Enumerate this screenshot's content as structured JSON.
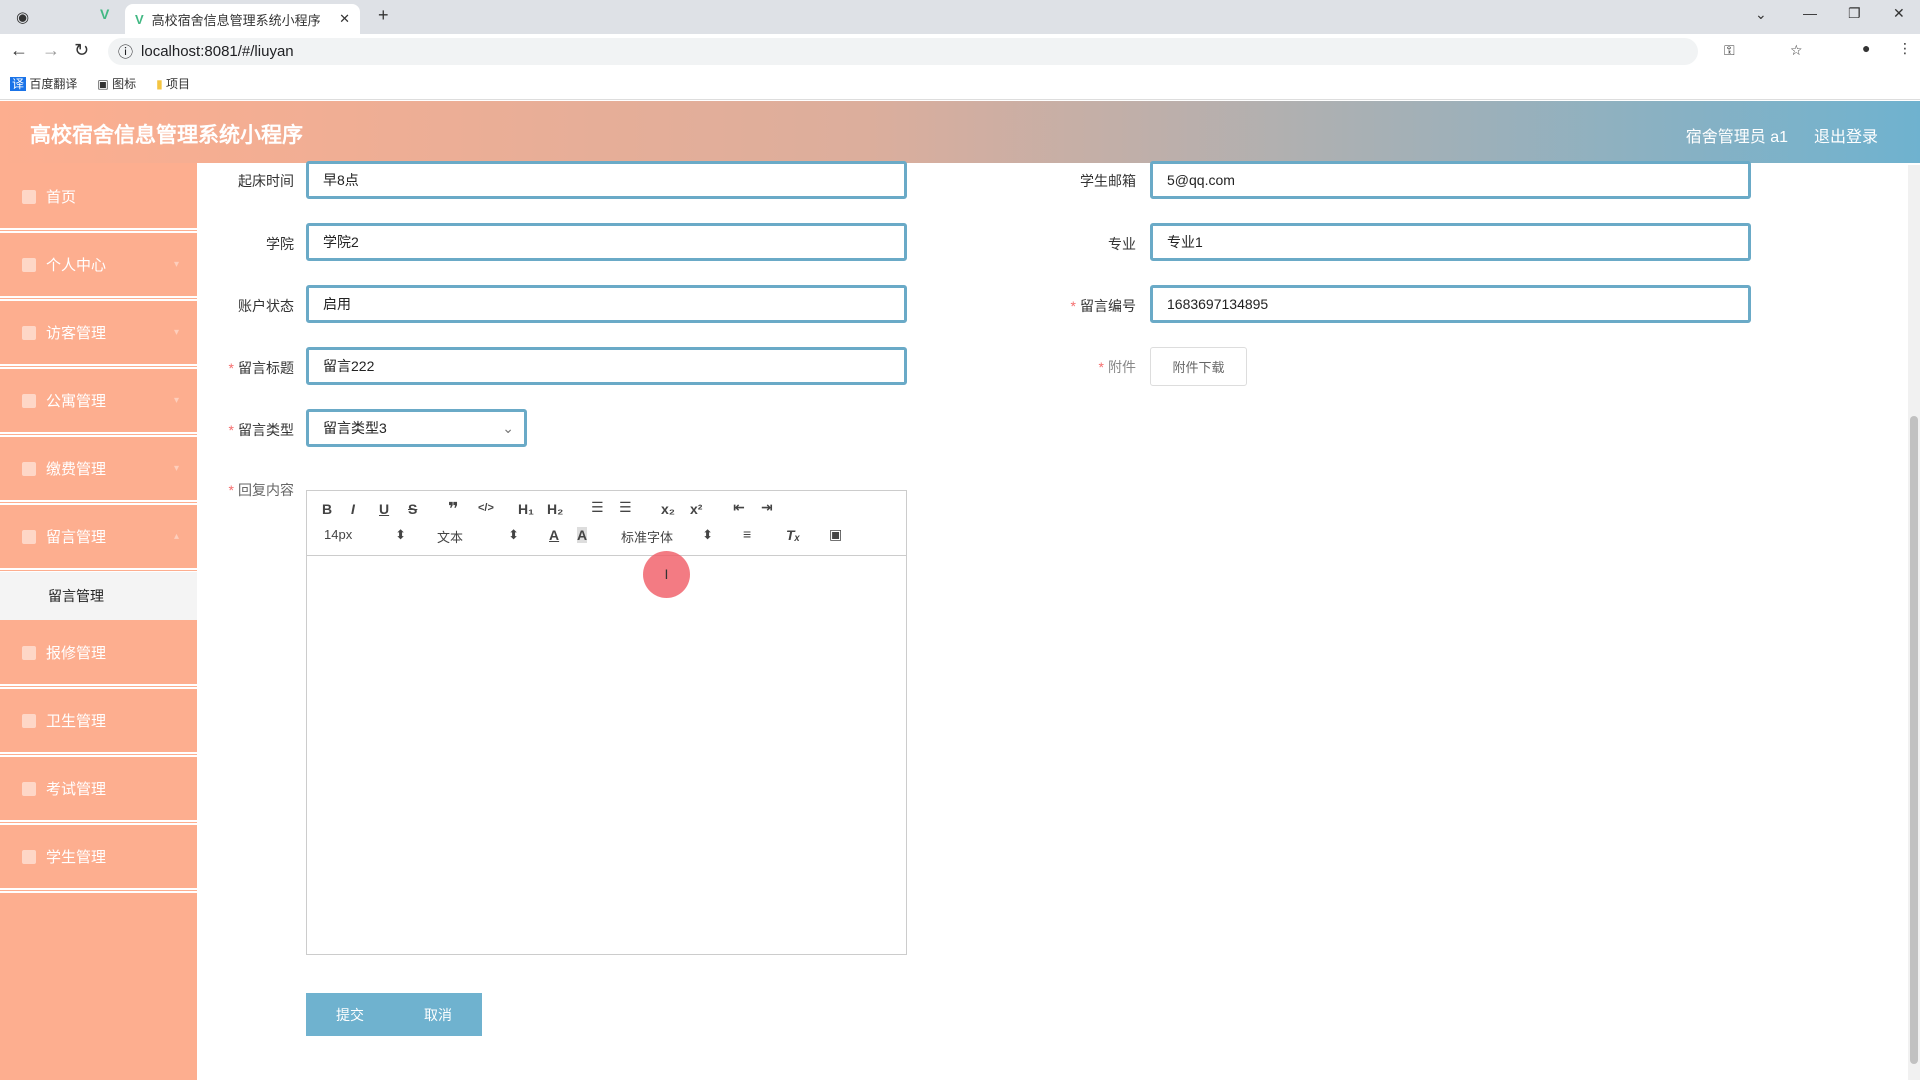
{
  "browser": {
    "tab_title": "高校宿舍信息管理系统小程序",
    "url": "localhost:8081/#/liuyan",
    "bookmarks": [
      "百度翻译",
      "图标",
      "项目"
    ]
  },
  "header": {
    "title": "高校宿舍信息管理系统小程序",
    "user": "宿舍管理员 a1",
    "logout": "退出登录"
  },
  "sidebar": {
    "items": [
      "首页",
      "个人中心",
      "访客管理",
      "公寓管理",
      "缴费管理",
      "留言管理",
      "报修管理",
      "卫生管理",
      "考试管理",
      "学生管理"
    ],
    "sub_item": "留言管理"
  },
  "form": {
    "left": [
      {
        "label": "起床时间",
        "value": "早8点",
        "required": false
      },
      {
        "label": "学院",
        "value": "学院2",
        "required": false
      },
      {
        "label": "账户状态",
        "value": "启用",
        "required": false
      },
      {
        "label": "留言标题",
        "value": "留言222",
        "required": true
      }
    ],
    "type": {
      "label": "留言类型",
      "value": "留言类型3"
    },
    "right": [
      {
        "label": "学生邮箱",
        "value": "5@qq.com"
      },
      {
        "label": "专业",
        "value": "专业1"
      },
      {
        "label": "留言编号",
        "value": "1683697134895"
      }
    ],
    "attachment": {
      "label": "附件",
      "button": "附件下载"
    },
    "content": {
      "label": "回复内容",
      "size": "14px",
      "text_style": "文本",
      "font": "标准字体"
    },
    "submit": "提交",
    "cancel": "取消"
  },
  "colors": {
    "accent": "#6fb2cf",
    "sidebar": "#fdae8f"
  }
}
